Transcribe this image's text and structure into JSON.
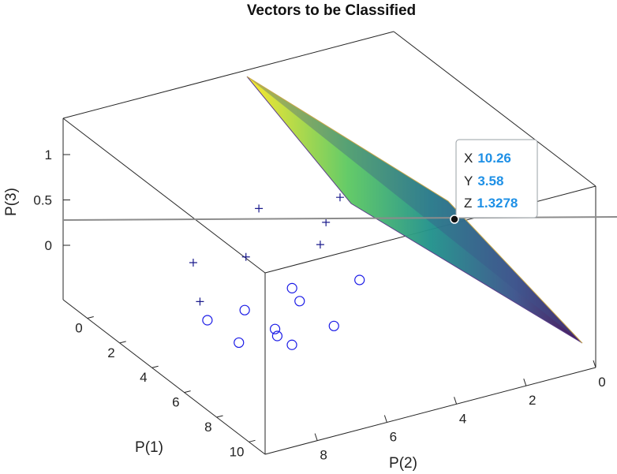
{
  "chart_data": {
    "type": "scatter",
    "title": "Vectors to be Classified",
    "xlabel": "P(1)",
    "ylabel": "P(2)",
    "zlabel": "P(3)",
    "xlim": [
      -1.5,
      11
    ],
    "ylim": [
      0,
      9.5
    ],
    "zlim": [
      -0.6,
      1.4
    ],
    "x_ticks": [
      0,
      2,
      4,
      6,
      8,
      10
    ],
    "y_ticks": [
      0,
      2,
      4,
      6,
      8
    ],
    "z_ticks": [
      0,
      0.5,
      1
    ],
    "grid": false,
    "series": [
      {
        "marker": "plus",
        "color": "#1a1a8c",
        "points": [
          [
            2.0,
            5.5,
            0.48
          ],
          [
            2.5,
            3.4,
            0.46
          ],
          [
            4.0,
            4.5,
            0.5
          ],
          [
            5.8,
            5.5,
            0.6
          ],
          [
            4.0,
            6.8,
            0.35
          ],
          [
            1.6,
            7.2,
            0.0
          ],
          [
            4.6,
            8.4,
            0.1
          ]
        ]
      },
      {
        "marker": "circle",
        "color": "#1a1ae6",
        "points": [
          [
            4.2,
            8.0,
            -0.2
          ],
          [
            5.0,
            7.3,
            -0.05
          ],
          [
            5.5,
            7.7,
            -0.3
          ],
          [
            5.8,
            6.8,
            -0.2
          ],
          [
            6.2,
            6.5,
            -0.35
          ],
          [
            6.8,
            7.2,
            -0.1
          ],
          [
            5.6,
            6.0,
            0.0
          ],
          [
            6.0,
            5.2,
            -0.3
          ],
          [
            5.0,
            4.0,
            -0.05
          ],
          [
            4.7,
            5.8,
            0.0
          ]
        ]
      }
    ],
    "surface": {
      "colormap": [
        "#440d54",
        "#3b528b",
        "#21918c",
        "#5ec962",
        "#fde725"
      ]
    },
    "datatip": {
      "x_label": "X",
      "x_value": "10.26",
      "y_label": "Y",
      "y_value": "3.58",
      "z_label": "Z",
      "z_value": "1.3278"
    }
  }
}
